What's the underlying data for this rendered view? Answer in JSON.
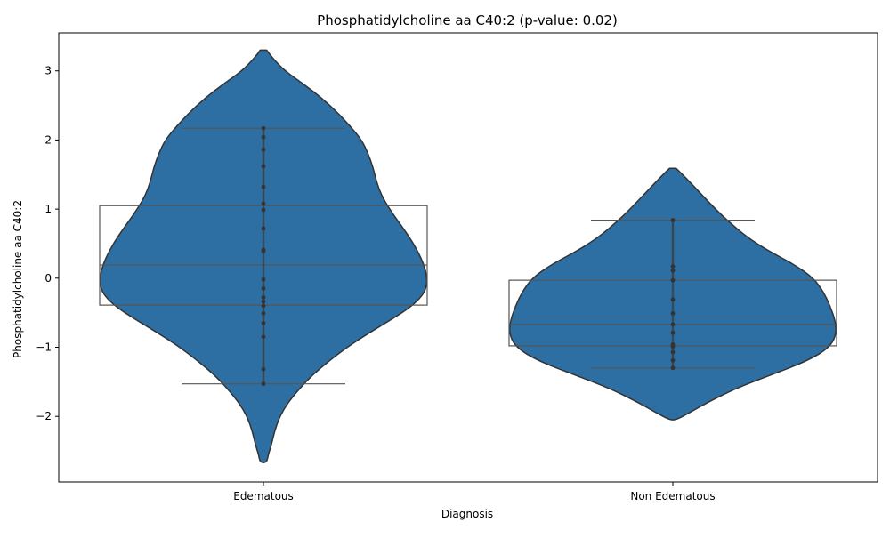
{
  "chart_data": {
    "type": "violin",
    "title": "Phosphatidylcholine aa C40:2 (p-value: 0.02)",
    "xlabel": "Diagnosis",
    "ylabel": "Phosphatidylcholine aa C40:2",
    "categories": [
      "Edematous",
      "Non Edematous"
    ],
    "ylim": [
      -2.95,
      3.55
    ],
    "yticks": [
      -2,
      -1,
      0,
      1,
      2,
      3
    ],
    "ytick_labels": [
      "−2",
      "−1",
      "0",
      "1",
      "2",
      "3"
    ],
    "grid": false,
    "colors": {
      "violin_fill": "#2e6fa3",
      "violin_edge": "#333333",
      "box_edge": "#555555",
      "points": "#333333"
    },
    "groups": [
      {
        "name": "Edematous",
        "box": {
          "whisker_low": -1.53,
          "q1": -0.39,
          "median": 0.19,
          "q3": 1.05,
          "whisker_high": 2.17
        },
        "points": [
          2.17,
          2.04,
          1.86,
          1.62,
          1.32,
          1.08,
          0.99,
          0.72,
          0.41,
          0.39,
          -0.02,
          -0.15,
          -0.28,
          -0.34,
          -0.4,
          -0.51,
          -0.65,
          -0.85,
          -1.32,
          -1.53
        ],
        "density": {
          "y": [
            3.3,
            3.2,
            3.0,
            2.8,
            2.6,
            2.4,
            2.2,
            2.0,
            1.8,
            1.6,
            1.4,
            1.2,
            1.0,
            0.8,
            0.6,
            0.4,
            0.2,
            0.0,
            -0.2,
            -0.4,
            -0.6,
            -0.8,
            -1.0,
            -1.2,
            -1.4,
            -1.6,
            -1.8,
            -2.0,
            -2.2,
            -2.4,
            -2.55,
            -2.67
          ],
          "half_width": [
            0.02,
            0.05,
            0.13,
            0.25,
            0.36,
            0.45,
            0.53,
            0.6,
            0.64,
            0.67,
            0.69,
            0.72,
            0.77,
            0.83,
            0.89,
            0.94,
            0.98,
            1.0,
            0.99,
            0.91,
            0.78,
            0.64,
            0.51,
            0.4,
            0.3,
            0.22,
            0.15,
            0.1,
            0.07,
            0.05,
            0.03,
            0.02
          ]
        }
      },
      {
        "name": "Non Edematous",
        "box": {
          "whisker_low": -1.3,
          "q1": -0.98,
          "median": -0.67,
          "q3": -0.03,
          "whisker_high": 0.84
        },
        "points": [
          0.84,
          0.17,
          0.11,
          -0.03,
          -0.31,
          -0.51,
          -0.67,
          -0.79,
          -0.96,
          -0.99,
          -1.07,
          -1.19,
          -1.3
        ],
        "density": {
          "y": [
            1.59,
            1.5,
            1.4,
            1.2,
            1.0,
            0.8,
            0.6,
            0.4,
            0.2,
            0.0,
            -0.2,
            -0.4,
            -0.6,
            -0.8,
            -1.0,
            -1.2,
            -1.4,
            -1.6,
            -1.8,
            -1.95,
            -2.05
          ],
          "half_width": [
            0.02,
            0.06,
            0.1,
            0.18,
            0.26,
            0.35,
            0.45,
            0.58,
            0.74,
            0.86,
            0.92,
            0.96,
            0.99,
            1.0,
            0.96,
            0.82,
            0.6,
            0.38,
            0.21,
            0.1,
            0.02
          ]
        }
      }
    ]
  }
}
